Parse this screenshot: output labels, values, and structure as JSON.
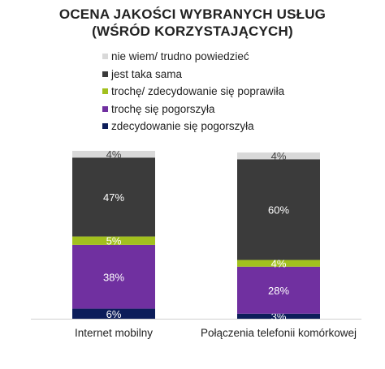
{
  "chart_data": {
    "type": "bar",
    "stacked": true,
    "title": [
      "OCENA JAKOŚCI WYBRANYCH USŁUG",
      "(WŚRÓD KORZYSTAJĄCYCH)"
    ],
    "categories": [
      "Internet mobilny",
      "Połączenia telefonii komórkowej"
    ],
    "series": [
      {
        "name": "zdecydowanie się pogorszyła",
        "color": "#0c1d5a",
        "values": [
          6,
          3
        ]
      },
      {
        "name": "trochę się pogorszyła",
        "color": "#7030a0",
        "values": [
          38,
          28
        ]
      },
      {
        "name": "trochę/ zdecydowanie się poprawiła",
        "color": "#a2c01e",
        "values": [
          5,
          4
        ]
      },
      {
        "name": "jest taka sama",
        "color": "#3b3b3b",
        "values": [
          47,
          60
        ]
      },
      {
        "name": "nie wiem/ trudno powiedzieć",
        "color": "#d9d9d9",
        "values": [
          4,
          4
        ]
      }
    ],
    "data_labels": [
      [
        "6%",
        "38%",
        "5%",
        "47%",
        "4%"
      ],
      [
        "3%",
        "28%",
        "4%",
        "60%",
        "4%"
      ]
    ],
    "legend_order": [
      4,
      3,
      2,
      1,
      0
    ],
    "legend_position": "top",
    "ylim": [
      0,
      100
    ],
    "grid": false
  }
}
